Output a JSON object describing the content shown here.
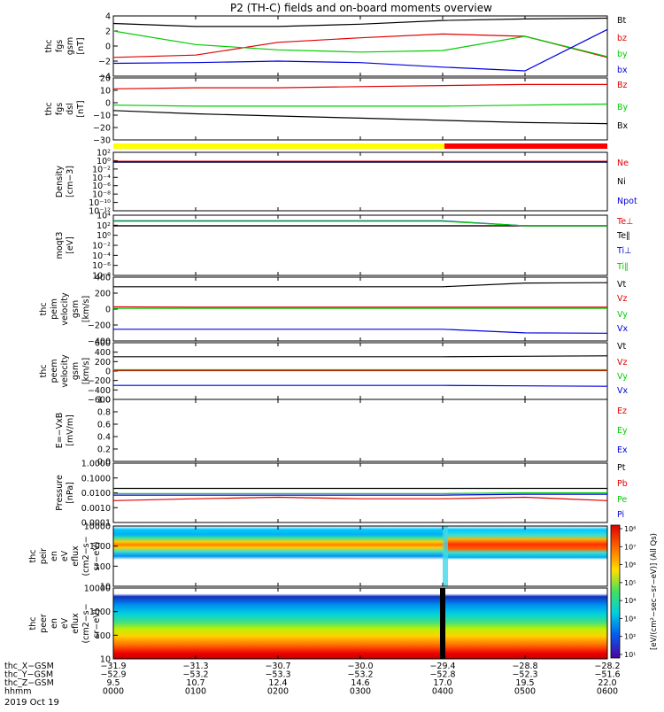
{
  "title": "P2 (TH-C) fields and on-board moments overview",
  "colors": {
    "black": "#000000",
    "red": "#e00000",
    "green": "#00cc00",
    "blue": "#0000e0",
    "yellow": "#ffff00",
    "barred": "#ff0000"
  },
  "panels": [
    {
      "id": "fgs-gsm",
      "ylabel": [
        "thc",
        "fgs",
        "gsm",
        "[nT]"
      ],
      "ticks": [
        "4",
        "2",
        "0",
        "−2",
        "−4"
      ],
      "legend": [
        {
          "text": "Bt",
          "color": "#000000"
        },
        {
          "text": "bz",
          "color": "#e00000"
        },
        {
          "text": "by",
          "color": "#00cc00"
        },
        {
          "text": "bx",
          "color": "#0000e0"
        }
      ]
    },
    {
      "id": "fgs-dsl",
      "ylabel": [
        "thc",
        "fgs",
        "dsl",
        "[nT]"
      ],
      "ticks": [
        "20",
        "10",
        "0",
        "−10",
        "−20",
        "−30"
      ],
      "legend": [
        {
          "text": "Bz",
          "color": "#e00000"
        },
        {
          "text": "By",
          "color": "#00cc00"
        },
        {
          "text": "Bx",
          "color": "#000000"
        }
      ]
    },
    {
      "id": "density",
      "ylabel": [
        "Density",
        "[cm−3]"
      ],
      "ticks": [
        "10²",
        "10⁰",
        "10⁻²",
        "10⁻⁴",
        "10⁻⁶",
        "10⁻⁸",
        "10⁻¹⁰",
        "10⁻¹²"
      ],
      "legend": [
        {
          "text": "Ne",
          "color": "#e00000"
        },
        {
          "text": "Ni",
          "color": "#000000"
        },
        {
          "text": "Npot",
          "color": "#0000e0"
        }
      ]
    },
    {
      "id": "temp",
      "ylabel": [
        "moqt3",
        "[eV]"
      ],
      "ticks": [
        "10⁴",
        "10²",
        "10⁰",
        "10⁻²",
        "10⁻⁴",
        "10⁻⁶",
        "10⁻⁸"
      ],
      "legend": [
        {
          "text": "Te⊥",
          "color": "#e00000"
        },
        {
          "text": "Te∥",
          "color": "#000000"
        },
        {
          "text": "Ti⊥",
          "color": "#0000e0"
        },
        {
          "text": "Ti∥",
          "color": "#00cc00"
        }
      ]
    },
    {
      "id": "peim",
      "ylabel": [
        "thc",
        "peim",
        "velocity",
        "gsm",
        "[km/s]"
      ],
      "ticks": [
        "400",
        "200",
        "0",
        "−200",
        "−400"
      ],
      "legend": [
        {
          "text": "Vt",
          "color": "#000000"
        },
        {
          "text": "Vz",
          "color": "#e00000"
        },
        {
          "text": "Vy",
          "color": "#00cc00"
        },
        {
          "text": "Vx",
          "color": "#0000e0"
        }
      ]
    },
    {
      "id": "peem",
      "ylabel": [
        "thc",
        "peem",
        "velocity",
        "gsm",
        "[km/s]"
      ],
      "ticks": [
        "600",
        "400",
        "200",
        "0",
        "−200",
        "−400",
        "−600"
      ],
      "legend": [
        {
          "text": "Vt",
          "color": "#000000"
        },
        {
          "text": "Vz",
          "color": "#e00000"
        },
        {
          "text": "Vy",
          "color": "#00cc00"
        },
        {
          "text": "Vx",
          "color": "#0000e0"
        }
      ]
    },
    {
      "id": "efield",
      "ylabel": [
        "E=−VxB",
        "[mV/m]"
      ],
      "ticks": [
        "1.0",
        "0.8",
        "0.6",
        "0.4",
        "0.2",
        "0.0"
      ],
      "legend": [
        {
          "text": "Ez",
          "color": "#e00000"
        },
        {
          "text": "Ey",
          "color": "#00cc00"
        },
        {
          "text": "Ex",
          "color": "#0000e0"
        }
      ]
    },
    {
      "id": "pressure",
      "ylabel": [
        "Pressure",
        "[nPa]"
      ],
      "ticks": [
        "1.0000",
        "0.1000",
        "0.0100",
        "0.0010",
        "0.0001"
      ],
      "legend": [
        {
          "text": "Pt",
          "color": "#000000"
        },
        {
          "text": "Pb",
          "color": "#e00000"
        },
        {
          "text": "Pe",
          "color": "#00cc00"
        },
        {
          "text": "Pi",
          "color": "#0000e0"
        }
      ]
    },
    {
      "id": "peir",
      "ylabel": [
        "thc",
        "peir",
        "en",
        "eV",
        "eflux",
        "(cm2−s−",
        "sr−eV)"
      ],
      "ticks": [
        "10000",
        "1000",
        "100",
        "10"
      ]
    },
    {
      "id": "peer",
      "ylabel": [
        "thc",
        "peer",
        "en",
        "eV",
        "eflux",
        "(cm2−s−",
        "sr−eV)"
      ],
      "ticks": [
        "10000",
        "1000",
        "100",
        "10"
      ]
    }
  ],
  "colorbar": {
    "label": "[eV/(cm²−sec−sr−eV)] (All Qs)",
    "ticks": [
      "10⁸",
      "10⁷",
      "10⁶",
      "10⁵",
      "10⁴",
      "10³",
      "10²",
      "10¹"
    ]
  },
  "xaxis": {
    "rows": [
      {
        "label": "thc_X−GSM",
        "values": [
          "−31.9",
          "−31.3",
          "−30.7",
          "−30.0",
          "−29.4",
          "−28.8",
          "−28.2"
        ]
      },
      {
        "label": "thc_Y−GSM",
        "values": [
          "−52.9",
          "−53.2",
          "−53.3",
          "−53.2",
          "−52.8",
          "−52.3",
          "−51.6"
        ]
      },
      {
        "label": "thc_Z−GSM",
        "values": [
          "9.5",
          "10.7",
          "12.4",
          "14.6",
          "17.0",
          "19.5",
          "22.0"
        ]
      },
      {
        "label": "hhmm",
        "values": [
          "0000",
          "0100",
          "0200",
          "0300",
          "0400",
          "0500",
          "0600"
        ]
      }
    ],
    "date": "2019 Oct 19"
  },
  "chart_data": {
    "type": "line",
    "title": "P2 (TH-C) fields and on-board moments overview",
    "x": [
      "0000",
      "0100",
      "0200",
      "0300",
      "0400",
      "0500",
      "0600"
    ],
    "panels": [
      {
        "name": "thc fgs gsm [nT]",
        "ylim": [
          -4,
          4
        ],
        "series": [
          {
            "name": "Bt",
            "values": [
              3.0,
              2.6,
              2.6,
              2.9,
              3.4,
              3.6,
              3.7
            ]
          },
          {
            "name": "bz",
            "values": [
              -1.5,
              -1.2,
              0.5,
              1.1,
              1.6,
              1.3,
              -1.5
            ]
          },
          {
            "name": "by",
            "values": [
              2.0,
              0.2,
              -0.5,
              -0.8,
              -0.6,
              1.3,
              -1.4
            ]
          },
          {
            "name": "bx",
            "values": [
              -2.3,
              -2.2,
              -2.0,
              -2.2,
              -2.8,
              -3.3,
              2.2
            ]
          }
        ]
      },
      {
        "name": "thc fgs dsl [nT]",
        "ylim": [
          -35,
          22
        ],
        "series": [
          {
            "name": "Bz",
            "values": [
              12,
              13,
              13,
              14,
              15,
              16,
              16
            ]
          },
          {
            "name": "By",
            "values": [
              -3,
              -4,
              -4,
              -4,
              -4,
              -3,
              -2
            ]
          },
          {
            "name": "Bx",
            "values": [
              -8,
              -11,
              -13,
              -15,
              -17,
              -19,
              -20
            ]
          }
        ]
      },
      {
        "name": "Density [cm-3]",
        "scale": "log",
        "ylim": [
          1e-13,
          100.0
        ],
        "series": [
          {
            "name": "Ne",
            "values": [
              0.5,
              0.5,
              0.5,
              0.5,
              0.5,
              0.5,
              0.5
            ]
          },
          {
            "name": "Ni",
            "values": [
              0.3,
              0.3,
              0.3,
              0.3,
              0.3,
              0.3,
              0.3
            ]
          },
          {
            "name": "Npot",
            "values": [
              0.4,
              0.4,
              0.4,
              0.4,
              0.4,
              0.4,
              0.4
            ]
          }
        ]
      },
      {
        "name": "moqt3 [eV]",
        "scale": "log",
        "ylim": [
          1e-09,
          10000.0
        ],
        "series": [
          {
            "name": "Te⊥",
            "values": [
              50,
              50,
              50,
              50,
              50,
              50,
              50
            ]
          },
          {
            "name": "Te∥",
            "values": [
              50,
              50,
              50,
              50,
              50,
              50,
              50
            ]
          },
          {
            "name": "Ti⊥",
            "values": [
              600,
              600,
              600,
              600,
              600,
              50,
              50
            ]
          },
          {
            "name": "Ti∥",
            "values": [
              500,
              500,
              500,
              500,
              500,
              50,
              50
            ]
          }
        ]
      },
      {
        "name": "thc peim velocity gsm [km/s]",
        "ylim": [
          -450,
          420
        ],
        "series": [
          {
            "name": "Vt",
            "values": [
              290,
              290,
              290,
              290,
              290,
              340,
              345
            ]
          },
          {
            "name": "Vz",
            "values": [
              15,
              10,
              10,
              10,
              10,
              10,
              10
            ]
          },
          {
            "name": "Vy",
            "values": [
              -5,
              -5,
              -5,
              -5,
              -5,
              -5,
              -5
            ]
          },
          {
            "name": "Vx",
            "values": [
              -290,
              -290,
              -290,
              -290,
              -290,
              -340,
              -345
            ]
          }
        ]
      },
      {
        "name": "thc peem velocity gsm [km/s]",
        "ylim": [
          -650,
          650
        ],
        "series": [
          {
            "name": "Vt",
            "values": [
              330,
              330,
              330,
              330,
              330,
              340,
              350
            ]
          },
          {
            "name": "Vz",
            "values": [
              10,
              10,
              10,
              10,
              10,
              10,
              10
            ]
          },
          {
            "name": "Vy",
            "values": [
              30,
              30,
              30,
              30,
              30,
              30,
              30
            ]
          },
          {
            "name": "Vx",
            "values": [
              -330,
              -330,
              -330,
              -330,
              -330,
              -340,
              -350
            ]
          }
        ]
      },
      {
        "name": "E=-VxB [mV/m]",
        "ylim": [
          0,
          1.0
        ],
        "series": [
          {
            "name": "Ez",
            "values": []
          },
          {
            "name": "Ey",
            "values": []
          },
          {
            "name": "Ex",
            "values": []
          }
        ]
      },
      {
        "name": "Pressure [nPa]",
        "scale": "log",
        "ylim": [
          0.0001,
          1.0
        ],
        "series": [
          {
            "name": "Pt",
            "values": [
              0.02,
              0.02,
              0.02,
              0.02,
              0.02,
              0.02,
              0.02
            ]
          },
          {
            "name": "Pb",
            "values": [
              0.003,
              0.004,
              0.005,
              0.004,
              0.004,
              0.005,
              0.003
            ]
          },
          {
            "name": "Pe",
            "values": [
              0.009,
              0.009,
              0.009,
              0.009,
              0.009,
              0.01,
              0.01
            ]
          },
          {
            "name": "Pi",
            "values": [
              0.007,
              0.007,
              0.007,
              0.007,
              0.007,
              0.008,
              0.008
            ]
          }
        ]
      },
      {
        "name": "thc peir en eV eflux",
        "type": "heatmap",
        "scale": "log",
        "ylim": [
          5,
          30000
        ]
      },
      {
        "name": "thc peer en eV eflux",
        "type": "heatmap",
        "scale": "log",
        "ylim": [
          5,
          30000
        ]
      }
    ]
  }
}
